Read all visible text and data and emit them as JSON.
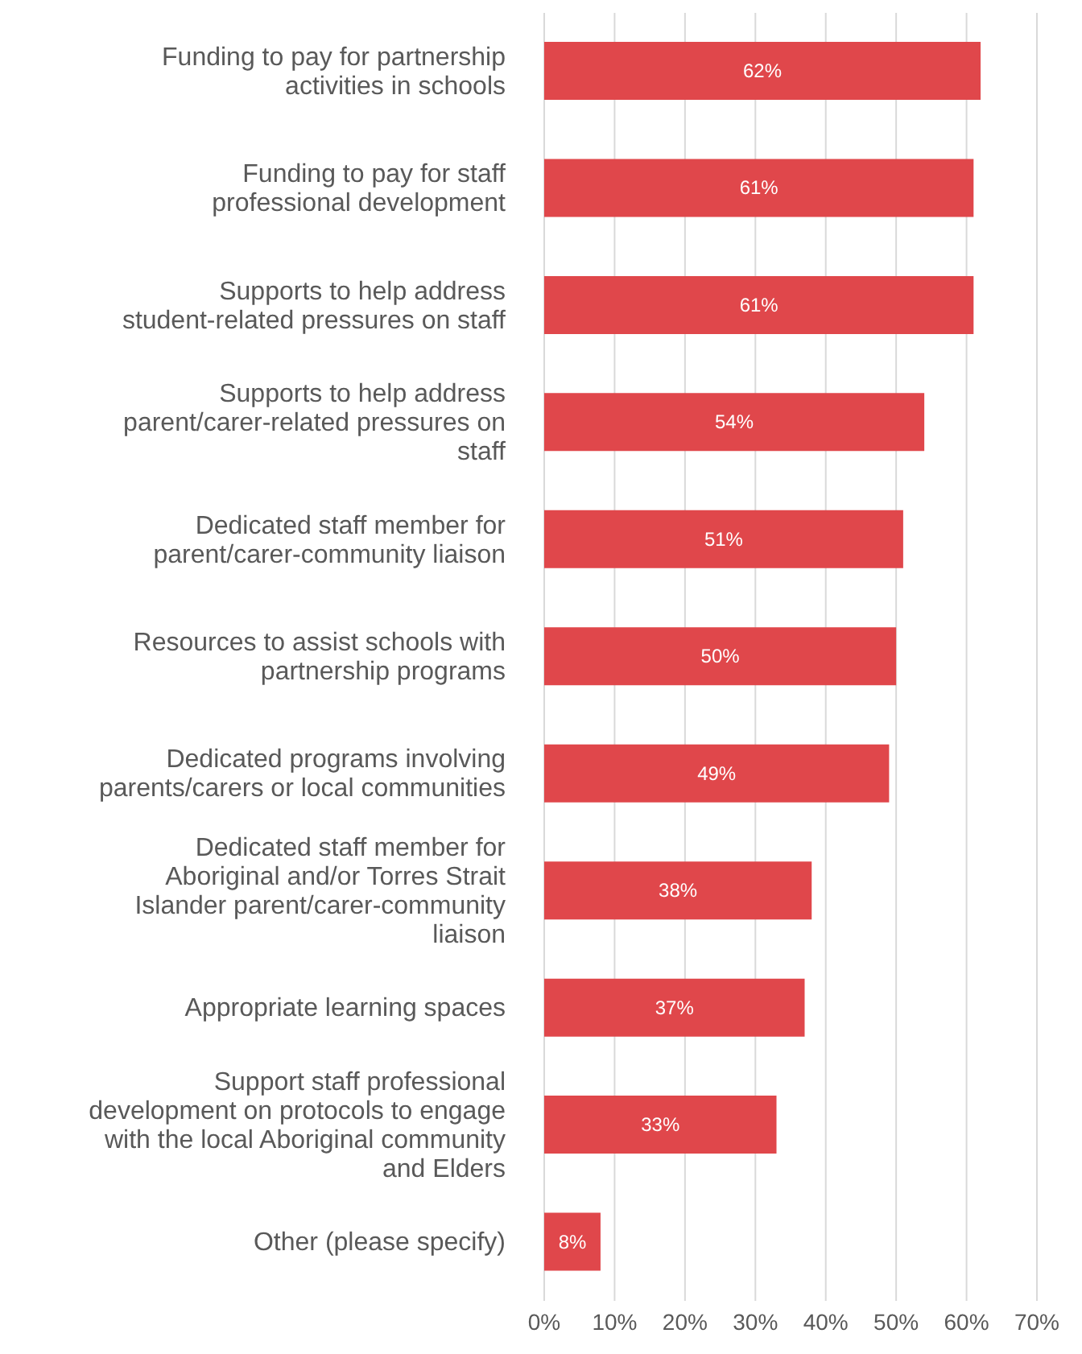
{
  "chart_data": {
    "type": "bar",
    "orientation": "horizontal",
    "categories": [
      "Funding to pay for partnership activities in schools",
      "Funding to pay for staff professional development",
      "Supports to help address student-related pressures on staff",
      "Supports to help address parent/carer-related pressures on staff",
      "Dedicated staff member for parent/carer-community liaison",
      "Resources to assist schools with partnership programs",
      "Dedicated programs involving parents/carers or local communities",
      "Dedicated staff member for Aboriginal and/or Torres Strait Islander parent/carer-community liaison",
      "Appropriate learning spaces",
      "Support staff professional development on protocols to engage with the local Aboriginal community and Elders",
      "Other (please specify)"
    ],
    "values": [
      62,
      61,
      61,
      54,
      51,
      50,
      49,
      38,
      37,
      33,
      8
    ],
    "value_labels": [
      "62%",
      "61%",
      "61%",
      "54%",
      "51%",
      "50%",
      "49%",
      "38%",
      "37%",
      "33%",
      "8%"
    ],
    "color": "#e0474b",
    "xlim": [
      0,
      70
    ],
    "xticks": [
      {
        "value": 0,
        "label": "0%"
      },
      {
        "value": 10,
        "label": "10%"
      },
      {
        "value": 20,
        "label": "20%"
      },
      {
        "value": 30,
        "label": "30%"
      },
      {
        "value": 40,
        "label": "40%"
      },
      {
        "value": 50,
        "label": "50%"
      },
      {
        "value": 60,
        "label": "60%"
      },
      {
        "value": 70,
        "label": "70%"
      }
    ],
    "grid": "x"
  }
}
